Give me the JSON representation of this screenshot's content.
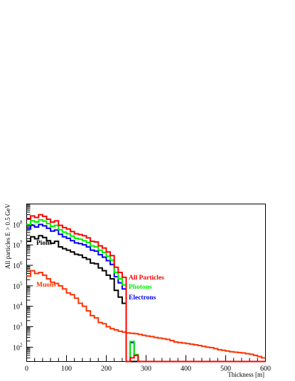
{
  "chart_data": {
    "type": "line",
    "style": "step histogram",
    "xlabel": "Thickness [m]",
    "ylabel": "All particles E > 0.5 GeV",
    "xlim": [
      0,
      600
    ],
    "ylim": [
      20,
      1000000000
    ],
    "yscale": "log",
    "grid": false,
    "legend": "inline labels",
    "bin_width": 10,
    "bin_edges_start": 0,
    "x_ticks": [
      0,
      100,
      200,
      300,
      400,
      500,
      600
    ],
    "x_tick_labels": [
      "0",
      "100",
      "200",
      "300",
      "400",
      "500",
      "600"
    ],
    "y_ticks": [
      100,
      1000,
      10000,
      100000,
      1000000,
      10000000,
      100000000
    ],
    "y_tick_labels": [
      {
        "base": "10",
        "exp": "2"
      },
      {
        "base": "10",
        "exp": "3"
      },
      {
        "base": "10",
        "exp": "4"
      },
      {
        "base": "10",
        "exp": "5"
      },
      {
        "base": "10",
        "exp": "6"
      },
      {
        "base": "10",
        "exp": "7"
      },
      {
        "base": "10",
        "exp": "8"
      }
    ],
    "series": [
      {
        "name": "All Particles",
        "color": "#ff0000",
        "values": [
          180000000,
          260000000,
          220000000,
          300000000,
          250000000,
          180000000,
          130000000,
          150000000,
          90000000,
          70000000,
          60000000,
          45000000,
          35000000,
          32000000,
          28000000,
          22000000,
          15000000,
          14000000,
          9000000,
          7000000,
          4500000,
          3000000,
          800000,
          450000,
          260000,
          20,
          30,
          40,
          20,
          20,
          20,
          20,
          20,
          20,
          20,
          20,
          20,
          20,
          20,
          20,
          20,
          20,
          20,
          20,
          20,
          20,
          20,
          20,
          20,
          20,
          20,
          20,
          20,
          20,
          20,
          20,
          20,
          20,
          20,
          20
        ]
      },
      {
        "name": "Photons",
        "color": "#00ee00",
        "values": [
          100000000,
          150000000,
          130000000,
          170000000,
          145000000,
          110000000,
          80000000,
          90000000,
          55000000,
          42000000,
          35000000,
          27000000,
          21000000,
          19000000,
          16000000,
          13000000,
          9000000,
          8000000,
          5500000,
          4200000,
          2800000,
          1800000,
          450000,
          220000,
          110000,
          20,
          190,
          44,
          20,
          20,
          20,
          20,
          20,
          20,
          20,
          20,
          20,
          20,
          20,
          20,
          20,
          20,
          20,
          20,
          20,
          20,
          20,
          20,
          20,
          20,
          20,
          20,
          20,
          20,
          20,
          20,
          20,
          20,
          20,
          20
        ]
      },
      {
        "name": "Electrons",
        "color": "#0000ee",
        "values": [
          60000000,
          90000000,
          75000000,
          100000000,
          85000000,
          65000000,
          47000000,
          53000000,
          33000000,
          25000000,
          21000000,
          16000000,
          12500000,
          11500000,
          10000000,
          8000000,
          5500000,
          5000000,
          3300000,
          2500000,
          1700000,
          1100000,
          280000,
          140000,
          70000,
          20,
          170,
          40,
          20,
          20,
          20,
          20,
          20,
          20,
          20,
          20,
          20,
          20,
          20,
          20,
          20,
          20,
          20,
          20,
          20,
          20,
          20,
          20,
          20,
          20,
          20,
          20,
          20,
          20,
          20,
          20,
          20,
          20,
          20,
          20
        ]
      },
      {
        "name": "Pions",
        "color": "#000000",
        "values": [
          15000000,
          25000000,
          20000000,
          28000000,
          23000000,
          16000000,
          12000000,
          15000000,
          8000000,
          6500000,
          5500000,
          4500000,
          3500000,
          3200000,
          2400000,
          2000000,
          1300000,
          1200000,
          750000,
          550000,
          330000,
          220000,
          60000,
          28000,
          14000,
          20,
          20,
          20,
          20,
          20,
          20,
          20,
          20,
          20,
          20,
          20,
          20,
          20,
          20,
          20,
          20,
          20,
          20,
          20,
          20,
          20,
          20,
          20,
          20,
          20,
          20,
          20,
          20,
          20,
          20,
          20,
          20,
          20,
          20,
          20
        ]
      },
      {
        "name": "Muons",
        "color": "#ff3300",
        "values": [
          300000,
          550000,
          400000,
          450000,
          330000,
          220000,
          150000,
          130000,
          100000,
          70000,
          45000,
          37000,
          25000,
          14000,
          10000,
          6000,
          3500,
          2700,
          1600,
          1400,
          1000,
          800,
          700,
          600,
          550,
          500,
          480,
          460,
          420,
          380,
          350,
          330,
          300,
          280,
          260,
          240,
          210,
          180,
          170,
          160,
          150,
          140,
          130,
          120,
          110,
          100,
          95,
          85,
          75,
          70,
          65,
          60,
          57,
          55,
          52,
          48,
          45,
          40,
          35,
          30
        ]
      }
    ],
    "annotations": [
      {
        "text": "All Particles",
        "color": "#ff0000"
      },
      {
        "text": "Photons",
        "color": "#00ee00"
      },
      {
        "text": "Electrons",
        "color": "#0000ee"
      },
      {
        "text": "Pions",
        "color": "#000000"
      },
      {
        "text": "Muons",
        "color": "#ff3300"
      }
    ]
  }
}
